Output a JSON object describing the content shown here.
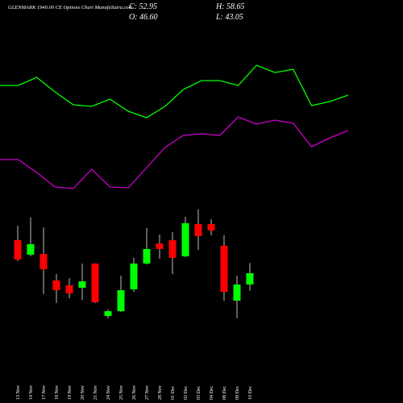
{
  "chart_data": [
    {
      "type": "candlestick",
      "title": "GLENMARK 1940.00 CE Options Chart MunafaSutra.com",
      "ohlc_labels": [
        "C: 52.95",
        "O: 46.60",
        "H: 58.65",
        "L: 43.05"
      ],
      "categories": [
        "13 Nov",
        "14 Nov",
        "17 Nov",
        "18 Nov",
        "19 Nov",
        "20 Nov",
        "21 Nov",
        "24 Nov",
        "25 Nov",
        "26 Nov",
        "27 Nov",
        "28 Nov",
        "01 Dec",
        "02 Dec",
        "03 Dec",
        "04 Dec",
        "08 Dec",
        "09 Dec",
        "10 Dec"
      ],
      "open": [
        71.6,
        63.4,
        63.8,
        48.9,
        46.2,
        44.8,
        58.4,
        28.9,
        31.6,
        43.9,
        58.4,
        69.7,
        71.6,
        62.5,
        80.6,
        80.6,
        68.4,
        37.5,
        46.6
      ],
      "high": [
        79.7,
        84.3,
        78.8,
        52.5,
        50.2,
        58.4,
        58.5,
        32.5,
        51.6,
        61.6,
        78.4,
        74.7,
        76.1,
        84.7,
        88.8,
        83.3,
        74.3,
        51.6,
        58.65
      ],
      "low": [
        59.8,
        62.5,
        41.2,
        36.2,
        38.9,
        38.0,
        36.2,
        27.6,
        31.2,
        42.5,
        57.9,
        61.1,
        52.5,
        62.0,
        66.1,
        74.3,
        37.5,
        27.6,
        43.05
      ],
      "close": [
        60.7,
        69.3,
        55.2,
        43.4,
        41.6,
        48.4,
        36.6,
        31.6,
        43.4,
        58.4,
        66.6,
        66.6,
        61.6,
        81.1,
        73.8,
        77.0,
        42.5,
        46.6,
        52.95
      ],
      "up_color": "#00ff00",
      "down_color": "#ff0000",
      "wick_color": "#bbbbbb",
      "ylim": [
        25.3,
        93.3
      ]
    },
    {
      "type": "line",
      "series": [
        {
          "color": "#00ff00",
          "values": [
            77,
            77,
            82,
            73,
            65,
            64,
            68.5,
            61,
            57,
            64,
            74.5,
            80,
            80,
            77,
            89.5,
            85,
            87,
            64.5,
            67,
            71
          ]
        },
        {
          "color": "#cc00cc",
          "values": [
            31,
            31,
            23,
            14,
            13,
            25,
            14,
            13.5,
            26,
            38.5,
            46,
            47,
            46,
            57.5,
            53,
            55.5,
            53.5,
            39,
            44.5,
            49
          ]
        }
      ],
      "ylim": [
        0,
        100
      ]
    }
  ]
}
